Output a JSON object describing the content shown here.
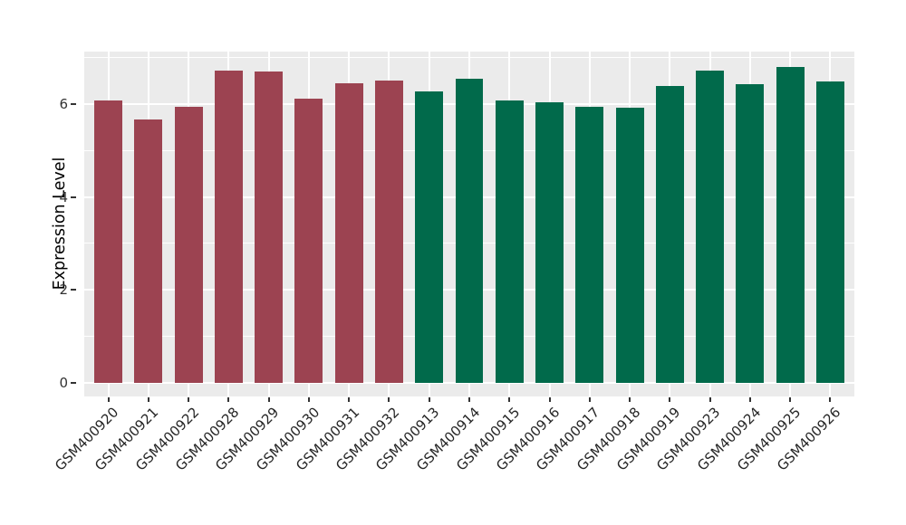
{
  "chart_data": {
    "type": "bar",
    "title": "",
    "xlabel": "",
    "ylabel": "Expression Level",
    "categories": [
      "GSM400920",
      "GSM400921",
      "GSM400922",
      "GSM400928",
      "GSM400929",
      "GSM400930",
      "GSM400931",
      "GSM400932",
      "GSM400913",
      "GSM400914",
      "GSM400915",
      "GSM400916",
      "GSM400917",
      "GSM400918",
      "GSM400919",
      "GSM400923",
      "GSM400924",
      "GSM400925",
      "GSM400926"
    ],
    "values": [
      6.08,
      5.66,
      5.95,
      6.72,
      6.71,
      6.12,
      6.44,
      6.51,
      6.27,
      6.55,
      6.08,
      6.04,
      5.95,
      5.92,
      6.39,
      6.73,
      6.43,
      6.8,
      6.48
    ],
    "bar_colors": [
      "#9C4351",
      "#9C4351",
      "#9C4351",
      "#9C4351",
      "#9C4351",
      "#9C4351",
      "#9C4351",
      "#9C4351",
      "#016A4B",
      "#016A4B",
      "#016A4B",
      "#016A4B",
      "#016A4B",
      "#016A4B",
      "#016A4B",
      "#016A4B",
      "#016A4B",
      "#016A4B",
      "#016A4B"
    ],
    "yticks": [
      0,
      2,
      4,
      6
    ],
    "minor_yticks": [
      1,
      3,
      5,
      7
    ],
    "ylim": [
      -0.3,
      7.13
    ],
    "bar_width_ratio": 0.7,
    "legend": "none",
    "grid": "horizontal major+minor, vertical major at category centers",
    "colors": {
      "panel_background": "#EBEBEB",
      "grid": "#FFFFFF",
      "tick_mark": "#333333",
      "y_tick_label": "#333333",
      "x_tick_label": "#262626",
      "axis_title": "#000000",
      "figure_background": "#FFFFFF"
    }
  }
}
